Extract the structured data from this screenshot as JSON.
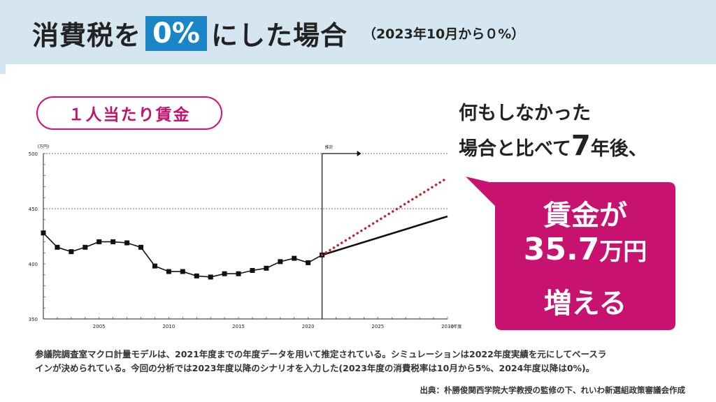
{
  "header": {
    "title_prefix": "消費税を",
    "title_highlight": "0%",
    "title_suffix": "にした場合",
    "subtitle": "（2023年10月から０%）"
  },
  "pill_label": "１人当たり賃金",
  "claim": {
    "line1": "何もしなかった",
    "line2_prefix": "場合と比べて",
    "line2_number": "7",
    "line2_suffix": "年後、"
  },
  "bubble": {
    "line1": "賃金が",
    "number": "35.7",
    "unit": "万円",
    "line3": "増える"
  },
  "notes": {
    "line1": "参議院調査室マクロ計量モデルは、2021年度までの年度データを用いて推定されている。シミュレーションは2022年度実績を元にしてベースラ",
    "line2": "インが決められている。今回の分析では2023年度以降のシナリオを入力した(2023年度の消費税率は10月から5%、2024年度以降は0%)。",
    "source": "出典：朴勝俊関西学院大学教授の監修の下、れいわ新選組政策審議会作成"
  },
  "colors": {
    "header_bg": "#d6e6f1",
    "accent_blue": "#1a86c8",
    "magenta": "#c8126f",
    "projection_dots": "#c0262c"
  },
  "chart_data": {
    "type": "line",
    "xlabel": "(年度)",
    "ylabel": "(万円)",
    "xlim": [
      2001,
      2030
    ],
    "ylim": [
      350,
      500
    ],
    "yticks": [
      350,
      400,
      450,
      500
    ],
    "xticks": [
      2005,
      2010,
      2015,
      2020,
      2025,
      2030
    ],
    "grid_dashed_at": [
      450,
      500
    ],
    "forecast_start": 2021,
    "forecast_label": "推計",
    "series": [
      {
        "style": "solid-markers",
        "x": [
          2001,
          2002,
          2003,
          2004,
          2005,
          2006,
          2007,
          2008,
          2009,
          2010,
          2011,
          2012,
          2013,
          2014,
          2015,
          2016,
          2017,
          2018,
          2019,
          2020,
          2021
        ],
        "values": [
          428,
          415,
          411,
          415,
          420,
          420,
          419,
          415,
          398,
          393,
          393,
          389,
          388,
          391,
          391,
          394,
          396,
          402,
          405,
          401,
          408
        ]
      },
      {
        "style": "solid",
        "x": [
          2021,
          2030
        ],
        "values": [
          408,
          443
        ]
      },
      {
        "style": "dotted",
        "x": [
          2021,
          2030
        ],
        "values": [
          408,
          478
        ]
      }
    ]
  }
}
